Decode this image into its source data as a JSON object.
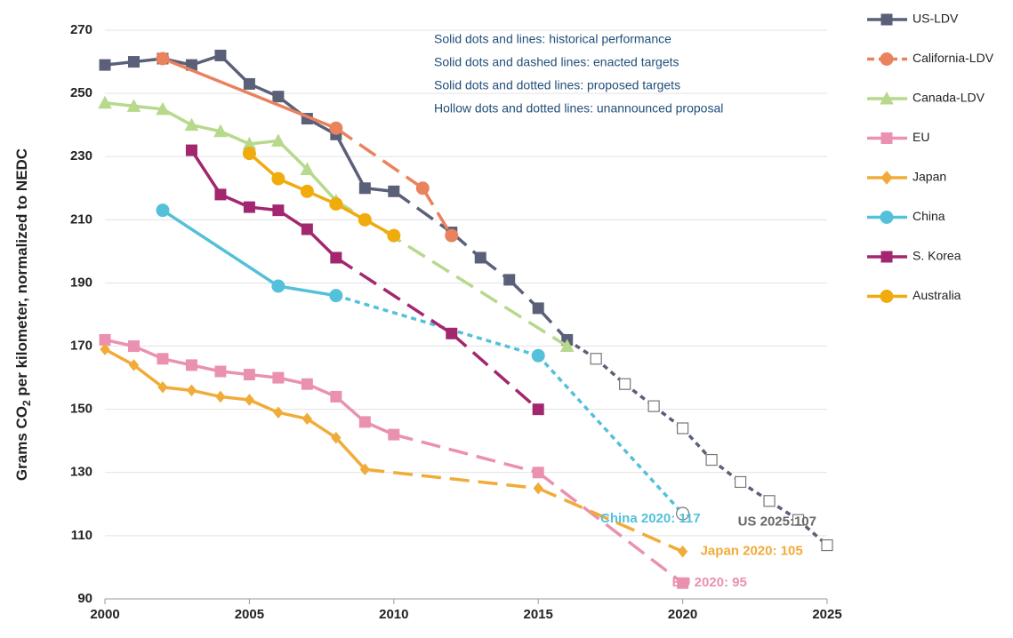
{
  "chart_data": {
    "type": "line",
    "ylabel": {
      "text": "Grams CO",
      "sub": "2",
      "rest": " per kilometer, normalized to NEDC"
    },
    "notes": [
      "Solid dots and lines: historical performance",
      "Solid dots and dashed lines: enacted targets",
      "Solid dots and dotted lines: proposed targets",
      "Hollow dots and dotted lines: unannounced proposal"
    ],
    "xlim": [
      2000,
      2025
    ],
    "xticks": [
      2000,
      2005,
      2010,
      2015,
      2020,
      2025
    ],
    "ylim": [
      90,
      270
    ],
    "yticks": [
      90,
      110,
      130,
      150,
      170,
      190,
      210,
      230,
      250,
      270
    ],
    "grid": true,
    "series": [
      {
        "name": "US-LDV",
        "color": "#5b6079",
        "marker": "square",
        "x": [
          2000,
          2001,
          2002,
          2003,
          2004,
          2005,
          2006,
          2007,
          2008,
          2009,
          2010,
          2012,
          2013,
          2014,
          2015,
          2016,
          2017,
          2018,
          2019,
          2020,
          2021,
          2022,
          2023,
          2024,
          2025
        ],
        "values": [
          259,
          260,
          261,
          259,
          262,
          253,
          249,
          242,
          237,
          220,
          219,
          206,
          198,
          191,
          182,
          172,
          166,
          158,
          151,
          144,
          134,
          127,
          121,
          115,
          107
        ],
        "styles": [
          "solid",
          "solid",
          "solid",
          "solid",
          "solid",
          "solid",
          "solid",
          "solid",
          "solid",
          "solid",
          "dashed",
          "dashed",
          "dashed",
          "dashed",
          "dashed",
          "dotted",
          "dotted",
          "dotted",
          "dotted",
          "dotted",
          "dotted",
          "dotted",
          "dotted",
          "dotted"
        ],
        "fills": [
          "filled",
          "filled",
          "filled",
          "filled",
          "filled",
          "filled",
          "filled",
          "filled",
          "filled",
          "filled",
          "filled",
          "filled",
          "filled",
          "filled",
          "filled",
          "filled",
          "hollow",
          "hollow",
          "hollow",
          "hollow",
          "hollow",
          "hollow",
          "hollow",
          "hollow",
          "hollow"
        ],
        "end_label": "US 2025:107"
      },
      {
        "name": "California-LDV",
        "color": "#e9825d",
        "marker": "circle",
        "x": [
          2002,
          2008,
          2011,
          2012
        ],
        "values": [
          261,
          239,
          220,
          205
        ],
        "styles": [
          "solid",
          "dashed",
          "dashed"
        ],
        "fills": [
          "filled",
          "filled",
          "filled",
          "filled"
        ]
      },
      {
        "name": "Canada-LDV",
        "color": "#b6d98c",
        "marker": "triangle",
        "x": [
          2000,
          2001,
          2002,
          2003,
          2004,
          2005,
          2006,
          2007,
          2008,
          2016
        ],
        "values": [
          247,
          246,
          245,
          240,
          238,
          234,
          235,
          226,
          216,
          170
        ],
        "styles": [
          "solid",
          "solid",
          "solid",
          "solid",
          "solid",
          "solid",
          "solid",
          "solid",
          "dashed"
        ],
        "fills": [
          "filled",
          "filled",
          "filled",
          "filled",
          "filled",
          "filled",
          "filled",
          "filled",
          "filled",
          "filled"
        ]
      },
      {
        "name": "EU",
        "color": "#ea91b1",
        "marker": "square",
        "x": [
          2000,
          2001,
          2002,
          2003,
          2004,
          2005,
          2006,
          2007,
          2008,
          2009,
          2010,
          2015,
          2020
        ],
        "values": [
          172,
          170,
          166,
          164,
          162,
          161,
          160,
          158,
          154,
          146,
          142,
          130,
          95
        ],
        "styles": [
          "solid",
          "solid",
          "solid",
          "solid",
          "solid",
          "solid",
          "solid",
          "solid",
          "solid",
          "solid",
          "dashed",
          "dashed"
        ],
        "fills": [
          "filled",
          "filled",
          "filled",
          "filled",
          "filled",
          "filled",
          "filled",
          "filled",
          "filled",
          "filled",
          "filled",
          "filled",
          "filled"
        ],
        "end_label": "EU 2020: 95"
      },
      {
        "name": "Japan",
        "color": "#f1ab38",
        "marker": "diamond",
        "x": [
          2000,
          2001,
          2002,
          2003,
          2004,
          2005,
          2006,
          2007,
          2008,
          2009,
          2015,
          2020
        ],
        "values": [
          169,
          164,
          157,
          156,
          154,
          153,
          149,
          147,
          141,
          131,
          125,
          105
        ],
        "styles": [
          "solid",
          "solid",
          "solid",
          "solid",
          "solid",
          "solid",
          "solid",
          "solid",
          "solid",
          "dashed",
          "dashed"
        ],
        "fills": [
          "filled",
          "filled",
          "filled",
          "filled",
          "filled",
          "filled",
          "filled",
          "filled",
          "filled",
          "filled",
          "filled",
          "filled"
        ],
        "end_label": "Japan 2020: 105"
      },
      {
        "name": "China",
        "color": "#52c1d9",
        "marker": "circle",
        "x": [
          2002,
          2006,
          2008,
          2015,
          2020
        ],
        "values": [
          213,
          189,
          186,
          167,
          117
        ],
        "styles": [
          "solid",
          "solid",
          "dotted",
          "dotted"
        ],
        "fills": [
          "filled",
          "filled",
          "filled",
          "filled",
          "hollow"
        ],
        "end_label": "China 2020: 117"
      },
      {
        "name": "S. Korea",
        "color": "#a2276f",
        "marker": "square",
        "x": [
          2003,
          2004,
          2005,
          2006,
          2007,
          2008,
          2012,
          2015
        ],
        "values": [
          232,
          218,
          214,
          213,
          207,
          198,
          174,
          150
        ],
        "styles": [
          "solid",
          "solid",
          "solid",
          "solid",
          "solid",
          "dashed",
          "dashed"
        ],
        "fills": [
          "filled",
          "filled",
          "filled",
          "filled",
          "filled",
          "filled",
          "filled",
          "filled"
        ]
      },
      {
        "name": "Australia",
        "color": "#f0ab0c",
        "marker": "circle",
        "x": [
          2005,
          2006,
          2007,
          2008,
          2009,
          2010
        ],
        "values": [
          231,
          223,
          219,
          215,
          210,
          205
        ],
        "styles": [
          "solid",
          "solid",
          "solid",
          "solid",
          "solid"
        ],
        "fills": [
          "filled",
          "filled",
          "filled",
          "filled",
          "filled",
          "filled"
        ]
      }
    ]
  }
}
